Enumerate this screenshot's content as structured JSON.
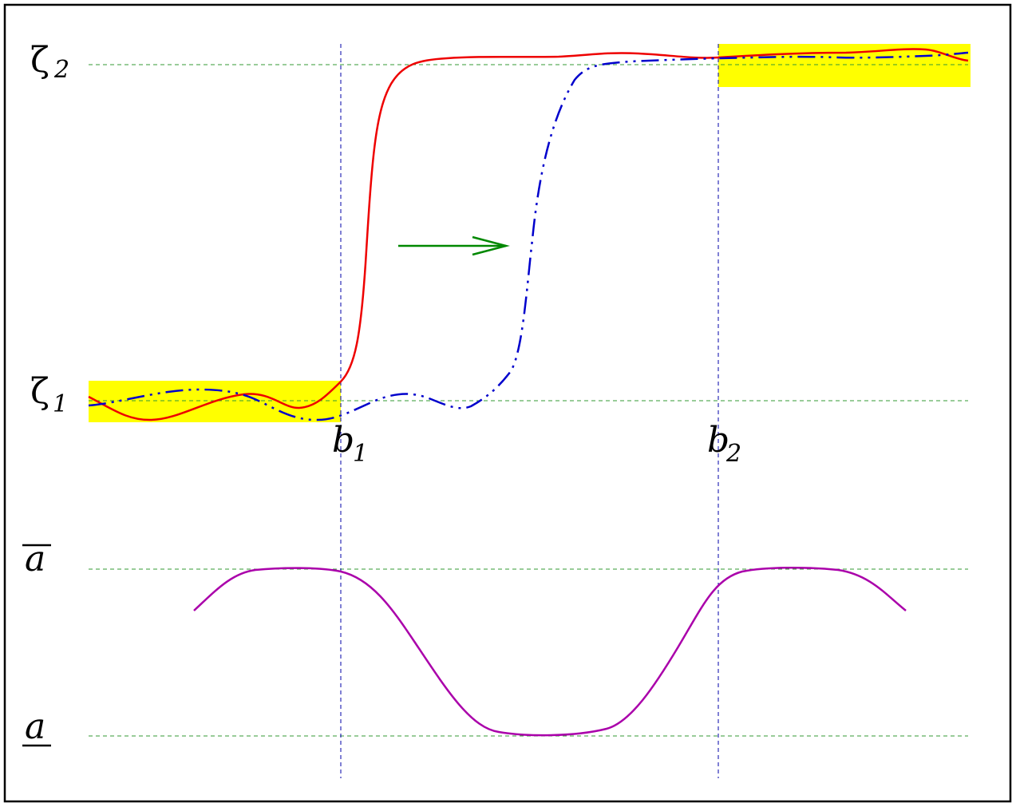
{
  "labels": {
    "zeta1": {
      "symbol": "ζ",
      "sub": "1"
    },
    "zeta2": {
      "symbol": "ζ",
      "sub": "2"
    },
    "b1": {
      "symbol": "b",
      "sub": "1"
    },
    "b2": {
      "symbol": "b",
      "sub": "2"
    },
    "a_upper": "a",
    "a_lower": "a"
  },
  "colors": {
    "frame": "#000000",
    "red_curve": "#ee0000",
    "blue_curve": "#0000cc",
    "magenta_curve": "#aa00aa",
    "arrow": "#008800",
    "guide_green": "#339933",
    "guide_blue": "#0000aa",
    "highlight": "#ffff00"
  },
  "diagram": {
    "arrow_direction": "right",
    "highlight_regions": [
      "left-low-plateau",
      "right-high-plateau"
    ]
  }
}
